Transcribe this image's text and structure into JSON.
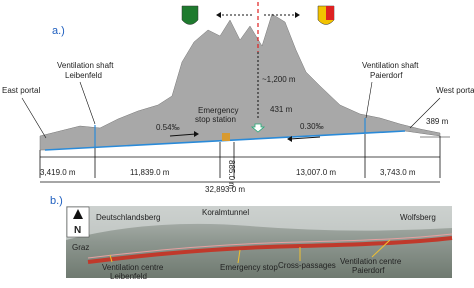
{
  "part_a": {
    "label": "a.)",
    "east_portal": "East portal",
    "shaft_east": [
      "Ventilation shaft",
      "Leibenfeld"
    ],
    "emergency_station": [
      "Emergency",
      "stop station"
    ],
    "overburden": "~1,200 m",
    "apex_height": "431 m",
    "gradient_east": "0.54‰",
    "gradient_west": "0.30‰",
    "shaft_west": [
      "Ventilation shaft",
      "Paierdorf"
    ],
    "west_portal": "West portal",
    "portal_height": "389 m",
    "lengths": [
      "3,419.0 m",
      "11,839.0 m",
      "885.0 m",
      "13,007.0 m",
      "3,743.0 m"
    ],
    "total_length": "32,893.0 m"
  },
  "part_b": {
    "label": "b.)",
    "north": "N",
    "places": [
      "Deutschlandsberg",
      "Koralmtunnel",
      "Wolfsberg",
      "Graz"
    ],
    "annotations": [
      [
        "Ventilation centre",
        "Leibenfeld"
      ],
      "Emergency stop",
      "Cross-passages",
      [
        "Ventilation centre",
        "Paierdorf"
      ]
    ]
  }
}
